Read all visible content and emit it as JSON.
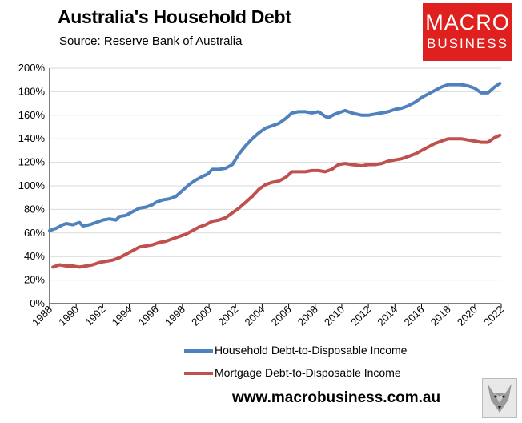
{
  "header": {
    "title": "Australia's Household Debt",
    "source": "Source: Reserve Bank of Australia"
  },
  "logo": {
    "line1": "MACRO",
    "line2": "BUSINESS"
  },
  "footer": {
    "url": "www.macrobusiness.com.au"
  },
  "colors": {
    "household": "#4f81bd",
    "mortgage": "#c0504d",
    "logo_red": "#e0201f"
  },
  "icons": {
    "mascot": "fox-mascot-icon"
  },
  "chart_data": {
    "type": "line",
    "title": "Australia's Household Debt",
    "subtitle": "Source: Reserve Bank of Australia",
    "xlim": [
      1988,
      2022
    ],
    "ylim": [
      0,
      200
    ],
    "x_ticks": [
      "1988",
      "1990",
      "1992",
      "1994",
      "1996",
      "1998",
      "2000",
      "2002",
      "2004",
      "2006",
      "2008",
      "2010",
      "2012",
      "2014",
      "2016",
      "2018",
      "2020",
      "2022"
    ],
    "y_ticks": [
      "0%",
      "20%",
      "40%",
      "60%",
      "80%",
      "100%",
      "120%",
      "140%",
      "160%",
      "180%",
      "200%"
    ],
    "grid": "horizontal",
    "legend_position": "bottom",
    "series": [
      {
        "name": "Household Debt-to-Disposable Income",
        "color": "#4f81bd",
        "points": [
          [
            1988.0,
            62
          ],
          [
            1988.5,
            64
          ],
          [
            1989.0,
            67
          ],
          [
            1989.25,
            68
          ],
          [
            1989.75,
            67
          ],
          [
            1990.25,
            69
          ],
          [
            1990.5,
            66
          ],
          [
            1991.0,
            67
          ],
          [
            1991.5,
            69
          ],
          [
            1992.0,
            71
          ],
          [
            1992.5,
            72
          ],
          [
            1993.0,
            71
          ],
          [
            1993.25,
            74
          ],
          [
            1993.75,
            75
          ],
          [
            1994.25,
            78
          ],
          [
            1994.75,
            81
          ],
          [
            1995.25,
            82
          ],
          [
            1995.75,
            84
          ],
          [
            1996.0,
            86
          ],
          [
            1996.5,
            88
          ],
          [
            1997.0,
            89
          ],
          [
            1997.5,
            91
          ],
          [
            1998.0,
            96
          ],
          [
            1998.5,
            101
          ],
          [
            1999.0,
            105
          ],
          [
            1999.5,
            108
          ],
          [
            1999.9,
            110
          ],
          [
            2000.25,
            114
          ],
          [
            2000.75,
            114
          ],
          [
            2001.25,
            115
          ],
          [
            2001.75,
            118
          ],
          [
            2002.25,
            127
          ],
          [
            2002.75,
            134
          ],
          [
            2003.25,
            140
          ],
          [
            2003.75,
            145
          ],
          [
            2004.25,
            149
          ],
          [
            2004.75,
            151
          ],
          [
            2005.25,
            153
          ],
          [
            2005.75,
            157
          ],
          [
            2006.25,
            162
          ],
          [
            2006.75,
            163
          ],
          [
            2007.25,
            163
          ],
          [
            2007.75,
            162
          ],
          [
            2008.25,
            163
          ],
          [
            2008.75,
            159
          ],
          [
            2009.0,
            158
          ],
          [
            2009.5,
            161
          ],
          [
            2010.0,
            163
          ],
          [
            2010.25,
            164
          ],
          [
            2010.75,
            162
          ],
          [
            2011.5,
            160
          ],
          [
            2012.0,
            160
          ],
          [
            2012.5,
            161
          ],
          [
            2013.0,
            162
          ],
          [
            2013.5,
            163
          ],
          [
            2014.0,
            165
          ],
          [
            2014.5,
            166
          ],
          [
            2015.0,
            168
          ],
          [
            2015.5,
            171
          ],
          [
            2016.0,
            175
          ],
          [
            2016.5,
            178
          ],
          [
            2017.0,
            181
          ],
          [
            2017.5,
            184
          ],
          [
            2018.0,
            186
          ],
          [
            2018.5,
            186
          ],
          [
            2019.0,
            186
          ],
          [
            2019.5,
            185
          ],
          [
            2020.0,
            183
          ],
          [
            2020.5,
            179
          ],
          [
            2021.0,
            179
          ],
          [
            2021.5,
            184
          ],
          [
            2021.9,
            187
          ]
        ]
      },
      {
        "name": "Mortgage Debt-to-Disposable Income",
        "color": "#c0504d",
        "points": [
          [
            1988.25,
            31
          ],
          [
            1988.75,
            33
          ],
          [
            1989.25,
            32
          ],
          [
            1989.75,
            32
          ],
          [
            1990.25,
            31
          ],
          [
            1990.75,
            32
          ],
          [
            1991.25,
            33
          ],
          [
            1991.75,
            35
          ],
          [
            1992.25,
            36
          ],
          [
            1992.75,
            37
          ],
          [
            1993.25,
            39
          ],
          [
            1993.75,
            42
          ],
          [
            1994.25,
            45
          ],
          [
            1994.75,
            48
          ],
          [
            1995.25,
            49
          ],
          [
            1995.75,
            50
          ],
          [
            1996.25,
            52
          ],
          [
            1996.75,
            53
          ],
          [
            1997.25,
            55
          ],
          [
            1997.75,
            57
          ],
          [
            1998.25,
            59
          ],
          [
            1998.75,
            62
          ],
          [
            1999.25,
            65
          ],
          [
            1999.75,
            67
          ],
          [
            2000.25,
            70
          ],
          [
            2000.75,
            71
          ],
          [
            2001.25,
            73
          ],
          [
            2001.75,
            77
          ],
          [
            2002.25,
            81
          ],
          [
            2002.75,
            86
          ],
          [
            2003.25,
            91
          ],
          [
            2003.75,
            97
          ],
          [
            2004.25,
            101
          ],
          [
            2004.75,
            103
          ],
          [
            2005.25,
            104
          ],
          [
            2005.75,
            107
          ],
          [
            2006.25,
            112
          ],
          [
            2006.75,
            112
          ],
          [
            2007.25,
            112
          ],
          [
            2007.75,
            113
          ],
          [
            2008.25,
            113
          ],
          [
            2008.75,
            112
          ],
          [
            2009.25,
            114
          ],
          [
            2009.75,
            118
          ],
          [
            2010.25,
            119
          ],
          [
            2010.75,
            118
          ],
          [
            2011.5,
            117
          ],
          [
            2012.0,
            118
          ],
          [
            2012.5,
            118
          ],
          [
            2013.0,
            119
          ],
          [
            2013.5,
            121
          ],
          [
            2014.0,
            122
          ],
          [
            2014.5,
            123
          ],
          [
            2015.0,
            125
          ],
          [
            2015.5,
            127
          ],
          [
            2016.0,
            130
          ],
          [
            2016.5,
            133
          ],
          [
            2017.0,
            136
          ],
          [
            2017.5,
            138
          ],
          [
            2018.0,
            140
          ],
          [
            2018.5,
            140
          ],
          [
            2019.0,
            140
          ],
          [
            2019.5,
            139
          ],
          [
            2020.0,
            138
          ],
          [
            2020.5,
            137
          ],
          [
            2021.0,
            137
          ],
          [
            2021.5,
            141
          ],
          [
            2021.9,
            143
          ]
        ]
      }
    ]
  }
}
